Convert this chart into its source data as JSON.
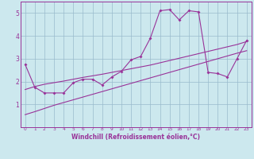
{
  "xlabel": "Windchill (Refroidissement éolien,°C)",
  "bg_color": "#cce8ee",
  "line_color": "#993399",
  "grid_color": "#99bbcc",
  "xlim": [
    -0.5,
    23.5
  ],
  "ylim": [
    0,
    5.5
  ],
  "xticks": [
    0,
    1,
    2,
    3,
    4,
    5,
    6,
    7,
    8,
    9,
    10,
    11,
    12,
    13,
    14,
    15,
    16,
    17,
    18,
    19,
    20,
    21,
    22,
    23
  ],
  "yticks": [
    1,
    2,
    3,
    4,
    5
  ],
  "line1_x": [
    0,
    1,
    2,
    3,
    4,
    5,
    6,
    7,
    8,
    9,
    10,
    11,
    12,
    13,
    14,
    15,
    16,
    17,
    18,
    19,
    20,
    21,
    22,
    23
  ],
  "line1_y": [
    2.75,
    1.75,
    1.5,
    1.5,
    1.5,
    1.95,
    2.1,
    2.1,
    1.85,
    2.2,
    2.45,
    2.95,
    3.1,
    3.9,
    5.1,
    5.15,
    4.7,
    5.1,
    5.05,
    2.4,
    2.35,
    2.2,
    3.0,
    3.8
  ],
  "line2_x": [
    0,
    1,
    2,
    3,
    4,
    5,
    6,
    7,
    8,
    9,
    10,
    11,
    12,
    13,
    14,
    15,
    16,
    17,
    18,
    19,
    20,
    21,
    22,
    23
  ],
  "line2_y": [
    1.65,
    1.78,
    1.88,
    1.95,
    2.02,
    2.1,
    2.18,
    2.25,
    2.32,
    2.4,
    2.48,
    2.56,
    2.64,
    2.72,
    2.82,
    2.92,
    3.02,
    3.12,
    3.22,
    3.32,
    3.42,
    3.52,
    3.62,
    3.75
  ],
  "line3_x": [
    0,
    1,
    2,
    3,
    4,
    5,
    6,
    7,
    8,
    9,
    10,
    11,
    12,
    13,
    14,
    15,
    16,
    17,
    18,
    19,
    20,
    21,
    22,
    23
  ],
  "line3_y": [
    0.55,
    0.68,
    0.82,
    0.96,
    1.08,
    1.2,
    1.32,
    1.44,
    1.56,
    1.68,
    1.8,
    1.92,
    2.04,
    2.16,
    2.28,
    2.4,
    2.52,
    2.64,
    2.76,
    2.88,
    3.0,
    3.12,
    3.24,
    3.35
  ]
}
